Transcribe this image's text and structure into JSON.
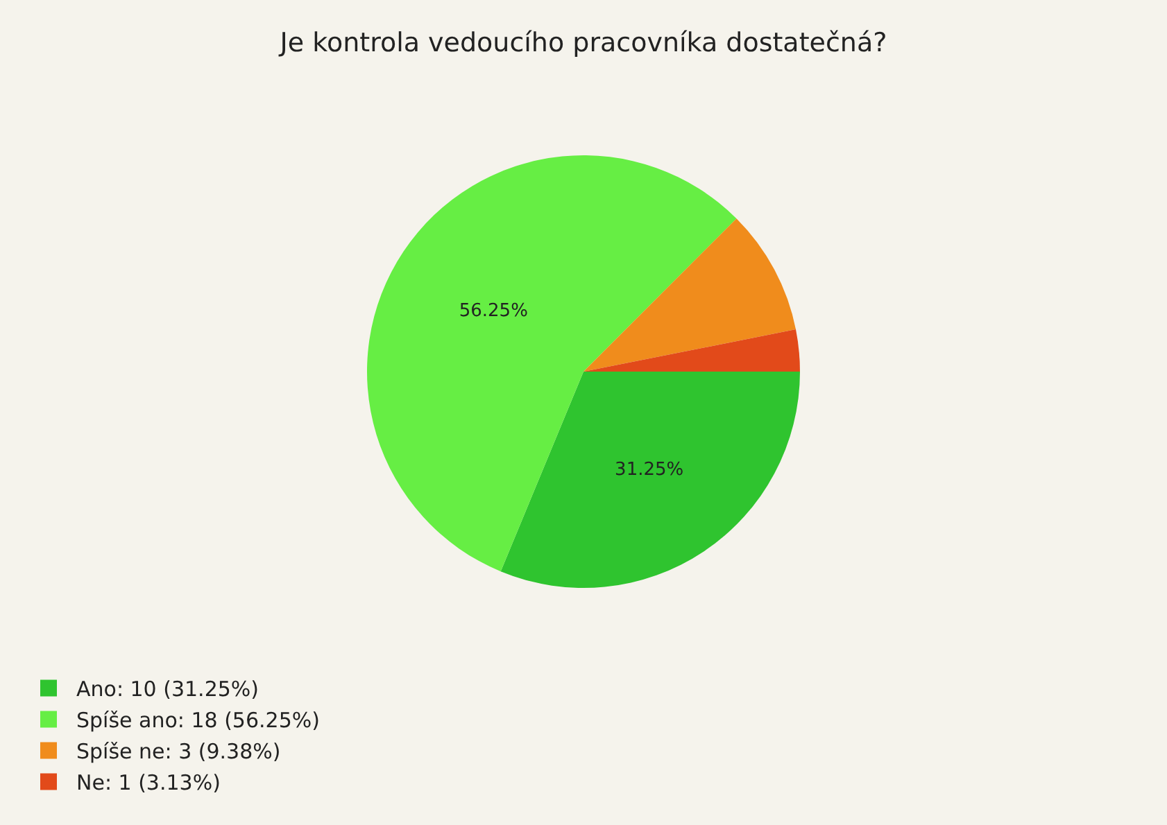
{
  "chart_data": {
    "type": "pie",
    "title": "Je kontrola vedoucího pracovníka dostatečná?",
    "categories": [
      "Ano: 10 (31.25%)",
      "Spíše ano: 18 (56.25%)",
      "Spíše ne: 3 (9.38%)",
      "Ne: 1 (3.13%)"
    ],
    "values": [
      31.25,
      56.25,
      9.38,
      3.13
    ],
    "colors": [
      "#2fc42f",
      "#66ee44",
      "#f08c1c",
      "#e24a1a"
    ],
    "value_labels": [
      "31.25%",
      "56.25%",
      null,
      null
    ],
    "legend": "bottom left"
  }
}
